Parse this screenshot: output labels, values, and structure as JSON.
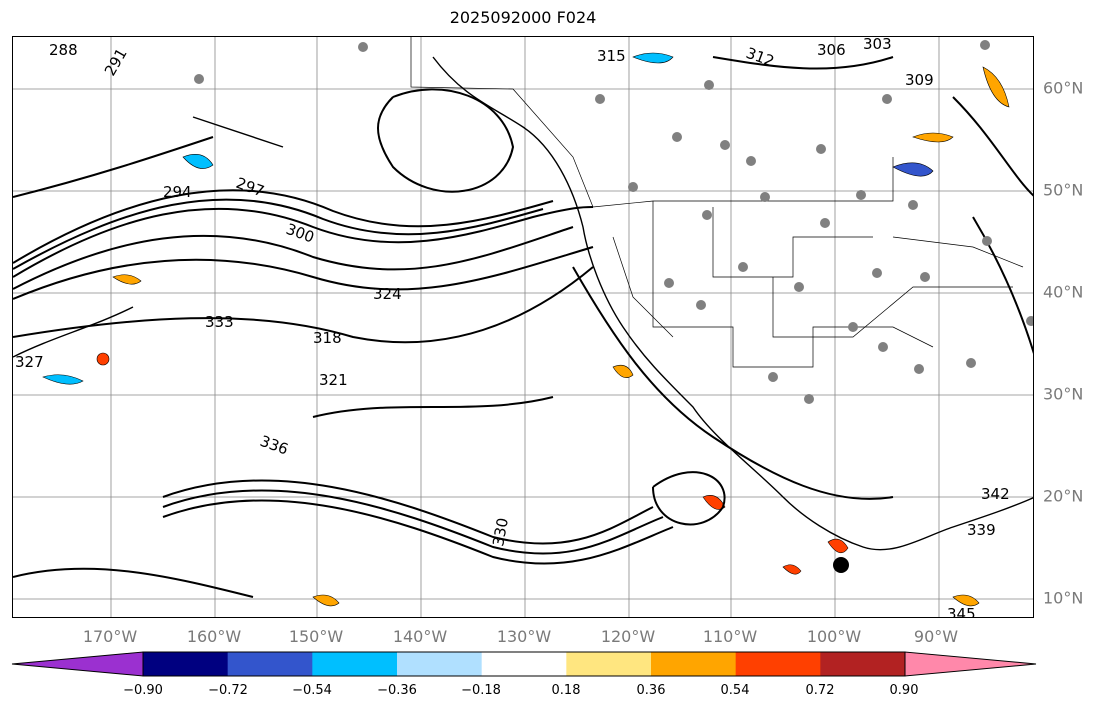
{
  "title": "2025092000 F024",
  "lon_labels": [
    "170°W",
    "160°W",
    "150°W",
    "140°W",
    "130°W",
    "120°W",
    "110°W",
    "100°W",
    "90°W"
  ],
  "lat_labels": [
    "60°N",
    "50°N",
    "40°N",
    "30°N",
    "20°N",
    "10°N"
  ],
  "colorbar": {
    "ticks": [
      "−0.90",
      "−0.72",
      "−0.54",
      "−0.36",
      "−0.18",
      "0.18",
      "0.36",
      "0.54",
      "0.72",
      "0.90"
    ],
    "colors": [
      "#9b30d0",
      "#000080",
      "#3355cc",
      "#00bfff",
      "#b0e0ff",
      "#ffffff",
      "#ffe680",
      "#ffa500",
      "#ff4000",
      "#b22222",
      "#ff88aa"
    ]
  },
  "contour_labels": [
    "288",
    "291",
    "294",
    "297",
    "300",
    "303",
    "306",
    "309",
    "312",
    "315",
    "318",
    "321",
    "324",
    "327",
    "330",
    "333",
    "336",
    "339",
    "342",
    "345"
  ],
  "colors": {
    "contour": "#000000",
    "grid": "#888888",
    "dots": "#808080"
  }
}
